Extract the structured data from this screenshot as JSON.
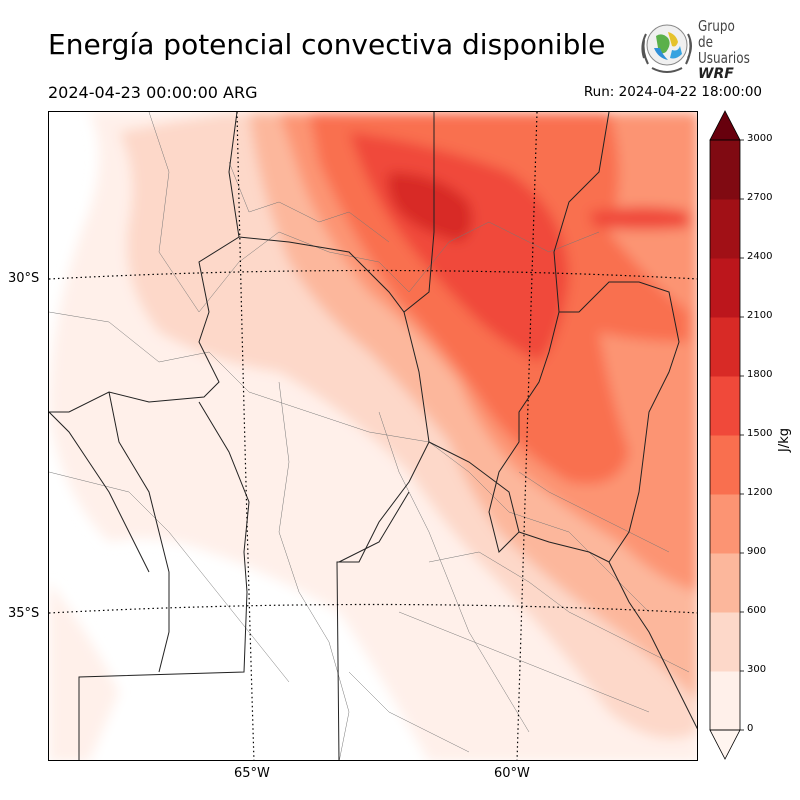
{
  "header": {
    "title": "Energía potencial convectiva disponible",
    "valid_time": "2024-04-23 00:00:00 ARG",
    "run_time": "Run: 2024-04-22 18:00:00"
  },
  "logo": {
    "line1": "Grupo de",
    "line2": "Usuarios",
    "line3": "WRF"
  },
  "map": {
    "lat_labels": [
      "30°S",
      "35°S"
    ],
    "lon_labels": [
      "65°W",
      "60°W"
    ]
  },
  "colorbar": {
    "units": "J/kg",
    "ticks": [
      "0",
      "300",
      "600",
      "900",
      "1200",
      "1500",
      "1800",
      "2100",
      "2400",
      "2700",
      "3000"
    ],
    "colors": [
      "#fff0ea",
      "#fdd8c9",
      "#fcb79c",
      "#fc9473",
      "#f96f4f",
      "#f0493a",
      "#d82a26",
      "#bc161c",
      "#a11016",
      "#800a12",
      "#67000d"
    ]
  }
}
